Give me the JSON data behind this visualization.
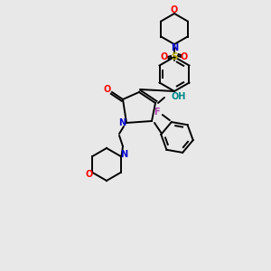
{
  "background_color": "#e8e8e8",
  "atom_colors": {
    "O": "#ff0000",
    "N": "#0000cc",
    "F": "#aa44aa",
    "S": "#bbaa00",
    "C": "#000000",
    "H": "#008888"
  },
  "figsize": [
    3.0,
    3.0
  ],
  "dpi": 100
}
